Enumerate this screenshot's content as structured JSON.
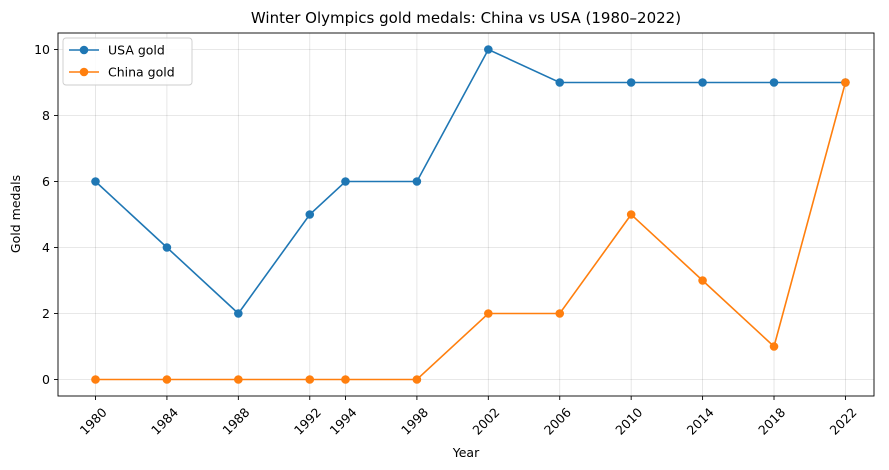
{
  "chart_data": {
    "type": "line",
    "title": "Winter Olympics gold medals: China vs USA (1980–2022)",
    "xlabel": "Year",
    "ylabel": "Gold medals",
    "x": [
      1980,
      1984,
      1988,
      1992,
      1994,
      1998,
      2002,
      2006,
      2010,
      2014,
      2018,
      2022
    ],
    "xticks": [
      "1980",
      "1984",
      "1988",
      "1992",
      "1994",
      "1998",
      "2002",
      "2006",
      "2010",
      "2014",
      "2018",
      "2022"
    ],
    "yticks": [
      "0",
      "2",
      "4",
      "6",
      "8",
      "10"
    ],
    "xlim": [
      1977.9,
      2023.6
    ],
    "ylim": [
      -0.5,
      10.5
    ],
    "grid": true,
    "legend_position": "upper left",
    "series": [
      {
        "name": "USA gold",
        "color": "#1f77b4",
        "marker": "circle",
        "values": [
          6,
          4,
          2,
          5,
          6,
          6,
          10,
          9,
          9,
          9,
          9,
          9
        ]
      },
      {
        "name": "China gold",
        "color": "#ff7f0e",
        "marker": "circle",
        "values": [
          0,
          0,
          0,
          0,
          0,
          0,
          2,
          2,
          5,
          3,
          1,
          9
        ]
      }
    ]
  }
}
